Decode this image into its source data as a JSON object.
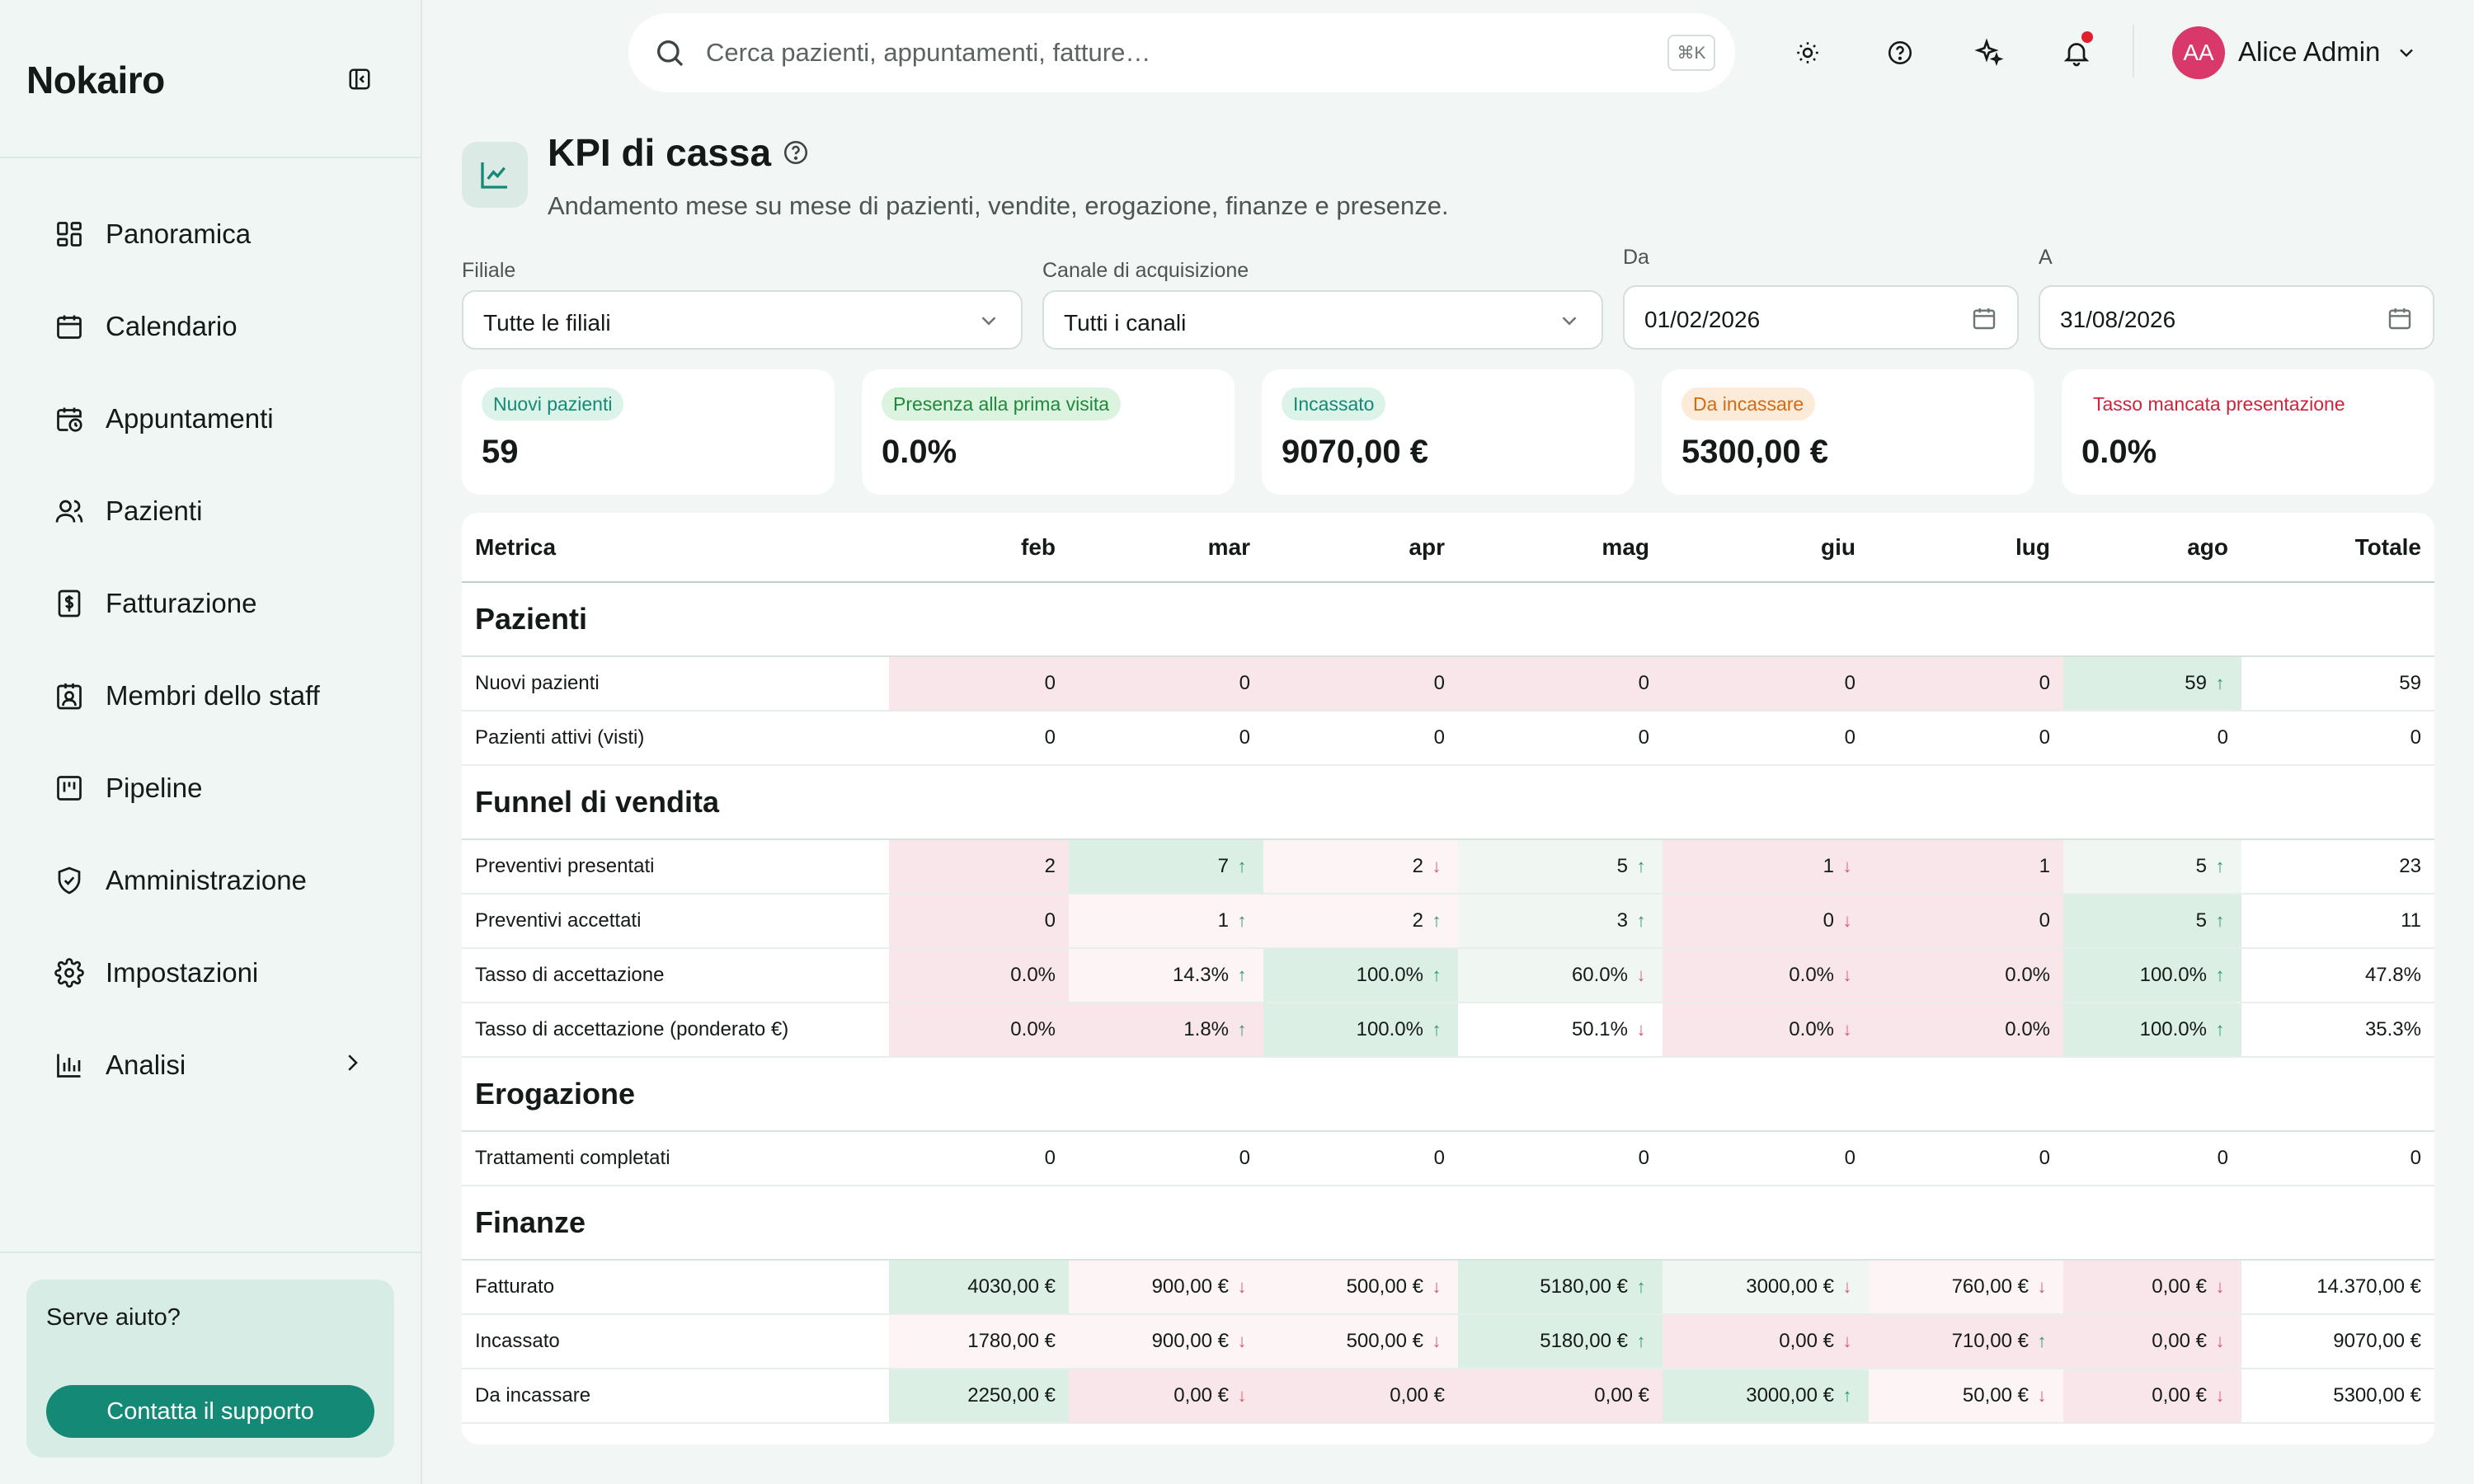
{
  "brand": "Nokairo",
  "sidebar": {
    "items": [
      {
        "label": "Panoramica",
        "icon": "dashboard-icon"
      },
      {
        "label": "Calendario",
        "icon": "calendar-icon"
      },
      {
        "label": "Appuntamenti",
        "icon": "calendar-clock-icon"
      },
      {
        "label": "Pazienti",
        "icon": "users-icon"
      },
      {
        "label": "Fatturazione",
        "icon": "invoice-icon"
      },
      {
        "label": "Membri dello staff",
        "icon": "staff-badge-icon"
      },
      {
        "label": "Pipeline",
        "icon": "kanban-icon"
      },
      {
        "label": "Amministrazione",
        "icon": "shield-icon"
      },
      {
        "label": "Impostazioni",
        "icon": "gear-icon"
      },
      {
        "label": "Analisi",
        "icon": "bar-chart-icon"
      }
    ],
    "help": {
      "title": "Serve aiuto?",
      "button": "Contatta il supporto"
    }
  },
  "topbar": {
    "search_placeholder": "Cerca pazienti, appuntamenti, fatture…",
    "shortcut": "⌘K",
    "avatar_initials": "AA",
    "user_name": "Alice Admin"
  },
  "page": {
    "title": "KPI di cassa",
    "subtitle": "Andamento mese su mese di pazienti, vendite, erogazione, finanze e presenze."
  },
  "filters": {
    "branch": {
      "label": "Filiale",
      "value": "Tutte le filiali"
    },
    "channel": {
      "label": "Canale di acquisizione",
      "value": "Tutti i canali"
    },
    "from": {
      "label": "Da",
      "value": "01/02/2026"
    },
    "to": {
      "label": "A",
      "value": "31/08/2026"
    }
  },
  "kpis": [
    {
      "label": "Nuovi pazienti",
      "value": "59",
      "color": "#148a76"
    },
    {
      "label": "Presenza alla prima visita",
      "value": "0.0%",
      "color": "#1c8a3a"
    },
    {
      "label": "Incassato",
      "value": "9070,00 €",
      "color": "#148a76"
    },
    {
      "label": "Da incassare",
      "value": "5300,00 €",
      "color": "#d46a10"
    },
    {
      "label": "Tasso mancata presentazione",
      "value": "0.0%",
      "color": "#d0223a"
    }
  ],
  "table": {
    "columns": [
      "Metrica",
      "feb",
      "mar",
      "apr",
      "mag",
      "giu",
      "lug",
      "ago",
      "Totale"
    ],
    "sections": [
      {
        "title": "Pazienti",
        "rows": [
          {
            "label": "Nuovi pazienti",
            "cells": [
              [
                "0",
                "dn1",
                ""
              ],
              [
                "0",
                "dn1",
                ""
              ],
              [
                "0",
                "dn1",
                ""
              ],
              [
                "0",
                "dn1",
                ""
              ],
              [
                "0",
                "dn1",
                ""
              ],
              [
                "0",
                "dn1",
                ""
              ],
              [
                "59",
                "up1",
                "up"
              ]
            ],
            "total": "59"
          },
          {
            "label": "Pazienti attivi (visti)",
            "cells": [
              [
                "0",
                "",
                ""
              ],
              [
                "0",
                "",
                ""
              ],
              [
                "0",
                "",
                ""
              ],
              [
                "0",
                "",
                ""
              ],
              [
                "0",
                "",
                ""
              ],
              [
                "0",
                "",
                ""
              ],
              [
                "0",
                "",
                ""
              ]
            ],
            "total": "0"
          }
        ]
      },
      {
        "title": "Funnel di vendita",
        "rows": [
          {
            "label": "Preventivi presentati",
            "cells": [
              [
                "2",
                "dn1",
                ""
              ],
              [
                "7",
                "up1",
                "up"
              ],
              [
                "2",
                "dn2",
                "down"
              ],
              [
                "5",
                "up2",
                "up"
              ],
              [
                "1",
                "dn1",
                "down"
              ],
              [
                "1",
                "dn1",
                ""
              ],
              [
                "5",
                "up2",
                "up"
              ]
            ],
            "total": "23"
          },
          {
            "label": "Preventivi accettati",
            "cells": [
              [
                "0",
                "dn1",
                ""
              ],
              [
                "1",
                "dn2",
                "up"
              ],
              [
                "2",
                "dn2",
                "up"
              ],
              [
                "3",
                "up2",
                "up"
              ],
              [
                "0",
                "dn1",
                "down"
              ],
              [
                "0",
                "dn1",
                ""
              ],
              [
                "5",
                "up1",
                "up"
              ]
            ],
            "total": "11"
          },
          {
            "label": "Tasso di accettazione",
            "cells": [
              [
                "0.0%",
                "dn1",
                ""
              ],
              [
                "14.3%",
                "dn2",
                "up"
              ],
              [
                "100.0%",
                "up1",
                "up"
              ],
              [
                "60.0%",
                "up2",
                "down"
              ],
              [
                "0.0%",
                "dn1",
                "down"
              ],
              [
                "0.0%",
                "dn1",
                ""
              ],
              [
                "100.0%",
                "up1",
                "up"
              ]
            ],
            "total": "47.8%"
          },
          {
            "label": "Tasso di accettazione (ponderato €)",
            "cells": [
              [
                "0.0%",
                "dn1",
                ""
              ],
              [
                "1.8%",
                "dn1",
                "up"
              ],
              [
                "100.0%",
                "up1",
                "up"
              ],
              [
                "50.1%",
                "",
                "down"
              ],
              [
                "0.0%",
                "dn1",
                "down"
              ],
              [
                "0.0%",
                "dn1",
                ""
              ],
              [
                "100.0%",
                "up1",
                "up"
              ]
            ],
            "total": "35.3%"
          }
        ]
      },
      {
        "title": "Erogazione",
        "rows": [
          {
            "label": "Trattamenti completati",
            "cells": [
              [
                "0",
                "",
                ""
              ],
              [
                "0",
                "",
                ""
              ],
              [
                "0",
                "",
                ""
              ],
              [
                "0",
                "",
                ""
              ],
              [
                "0",
                "",
                ""
              ],
              [
                "0",
                "",
                ""
              ],
              [
                "0",
                "",
                ""
              ]
            ],
            "total": "0"
          }
        ]
      },
      {
        "title": "Finanze",
        "rows": [
          {
            "label": "Fatturato",
            "cells": [
              [
                "4030,00 €",
                "up1",
                ""
              ],
              [
                "900,00 €",
                "dn2",
                "down"
              ],
              [
                "500,00 €",
                "dn2",
                "down"
              ],
              [
                "5180,00 €",
                "up1",
                "up"
              ],
              [
                "3000,00 €",
                "up2",
                "down"
              ],
              [
                "760,00 €",
                "dn2",
                "down"
              ],
              [
                "0,00 €",
                "dn1",
                "down"
              ]
            ],
            "total": "14.370,00 €"
          },
          {
            "label": "Incassato",
            "cells": [
              [
                "1780,00 €",
                "dn2",
                ""
              ],
              [
                "900,00 €",
                "dn2",
                "down"
              ],
              [
                "500,00 €",
                "dn2",
                "down"
              ],
              [
                "5180,00 €",
                "up1",
                "up"
              ],
              [
                "0,00 €",
                "dn1",
                "down"
              ],
              [
                "710,00 €",
                "dn1",
                "up"
              ],
              [
                "0,00 €",
                "dn1",
                "down"
              ]
            ],
            "total": "9070,00 €"
          },
          {
            "label": "Da incassare",
            "cells": [
              [
                "2250,00 €",
                "up1",
                ""
              ],
              [
                "0,00 €",
                "dn1",
                "down"
              ],
              [
                "0,00 €",
                "dn1",
                ""
              ],
              [
                "0,00 €",
                "dn1",
                ""
              ],
              [
                "3000,00 €",
                "up1",
                "up"
              ],
              [
                "50,00 €",
                "dn2",
                "down"
              ],
              [
                "0,00 €",
                "dn1",
                "down"
              ]
            ],
            "total": "5300,00 €"
          }
        ]
      }
    ]
  }
}
